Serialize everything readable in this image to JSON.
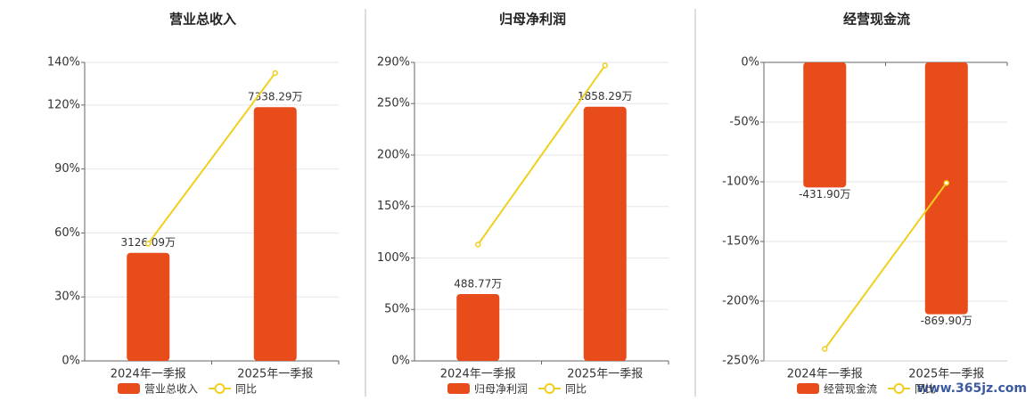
{
  "chart_data": [
    {
      "type": "bar",
      "title": "营业总收入",
      "categories": [
        "2024年一季报",
        "2025年一季报"
      ],
      "series": [
        {
          "name": "营业总收入",
          "color": "#e84c1a",
          "axis": "y2",
          "values": [
            3126.09,
            7338.29
          ],
          "value_labels": [
            "3126.09万",
            "7338.29万"
          ]
        },
        {
          "name": "同比",
          "type": "line",
          "color": "#f0cf1e",
          "values": [
            55,
            135
          ]
        }
      ],
      "ylim": [
        0,
        140
      ],
      "yticks": [
        {
          "value": 0,
          "label": "0%"
        },
        {
          "value": 30,
          "label": "30%"
        },
        {
          "value": 60,
          "label": "60%"
        },
        {
          "value": 90,
          "label": "90%"
        },
        {
          "value": 120,
          "label": "120%"
        },
        {
          "value": 140,
          "label": "140%"
        }
      ],
      "y2lim": [
        0,
        8633
      ],
      "grid": true
    },
    {
      "type": "bar",
      "title": "归母净利润",
      "categories": [
        "2024年一季报",
        "2025年一季报"
      ],
      "series": [
        {
          "name": "归母净利润",
          "color": "#e84c1a",
          "axis": "y2",
          "values": [
            488.77,
            1858.29
          ],
          "value_labels": [
            "488.77万",
            "1858.29万"
          ]
        },
        {
          "name": "同比",
          "type": "line",
          "color": "#f0cf1e",
          "values": [
            113,
            287
          ]
        }
      ],
      "ylim": [
        0,
        290
      ],
      "yticks": [
        {
          "value": 0,
          "label": "0%"
        },
        {
          "value": 50,
          "label": "50%"
        },
        {
          "value": 100,
          "label": "100%"
        },
        {
          "value": 150,
          "label": "150%"
        },
        {
          "value": 200,
          "label": "200%"
        },
        {
          "value": 250,
          "label": "250%"
        },
        {
          "value": 290,
          "label": "290%"
        }
      ],
      "y2lim": [
        0,
        2182
      ],
      "grid": true
    },
    {
      "type": "bar",
      "title": "经营现金流",
      "categories": [
        "2024年一季报",
        "2025年一季报"
      ],
      "series": [
        {
          "name": "经营现金流",
          "color": "#e84c1a",
          "axis": "y2",
          "values": [
            -431.9,
            -869.9
          ],
          "value_labels": [
            "-431.90万",
            "-869.90万"
          ]
        },
        {
          "name": "同比",
          "type": "line",
          "color": "#f0cf1e",
          "values": [
            -240,
            -101
          ]
        }
      ],
      "ylim": [
        -250,
        0
      ],
      "yticks": [
        {
          "value": 0,
          "label": "0%"
        },
        {
          "value": -50,
          "label": "-50%"
        },
        {
          "value": -100,
          "label": "-100%"
        },
        {
          "value": -150,
          "label": "-150%"
        },
        {
          "value": -200,
          "label": "-200%"
        },
        {
          "value": -250,
          "label": "-250%"
        }
      ],
      "y2lim": [
        -1031,
        0
      ],
      "grid": true
    }
  ],
  "watermark": "www.365jz.com"
}
